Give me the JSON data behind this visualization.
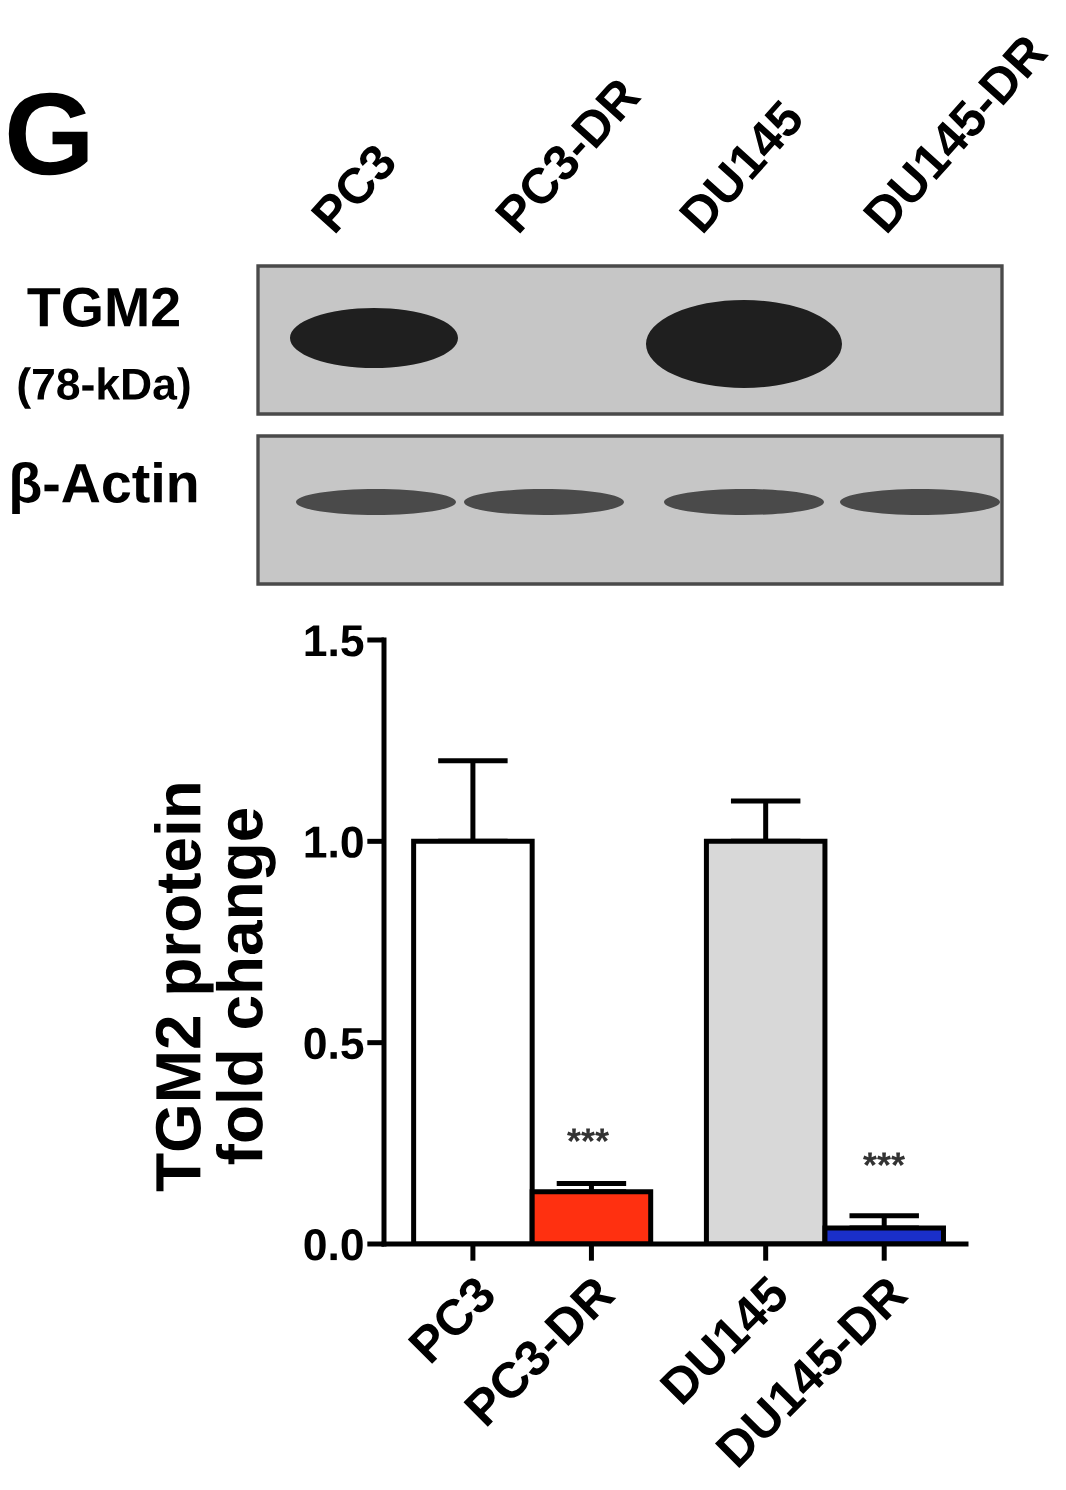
{
  "chart_data": {
    "type": "bar",
    "categories": [
      "PC3",
      "PC3-DR",
      "DU145",
      "DU145-DR"
    ],
    "values": [
      1.0,
      0.13,
      1.0,
      0.04
    ],
    "colors": [
      "#ffffff",
      "#ff3010",
      "#d8d8d8",
      "#1a2fc9"
    ],
    "errors": [
      [
        1.0,
        1.2
      ],
      [
        0.13,
        0.15
      ],
      [
        1.0,
        1.1
      ],
      [
        0.04,
        0.07
      ]
    ],
    "ylabel": "TGM2 protein\nfold change",
    "ylim": [
      0,
      1.5
    ],
    "yticks": [
      {
        "value": 0,
        "label": "0.0"
      },
      {
        "value": 0.5,
        "label": "0.5"
      },
      {
        "value": 1,
        "label": "1.0"
      },
      {
        "value": 1.5,
        "label": "1.5"
      }
    ],
    "annotations": [
      "G",
      "TGM2",
      "(78-kDa)",
      "β-Actin",
      "***",
      "***"
    ]
  }
}
